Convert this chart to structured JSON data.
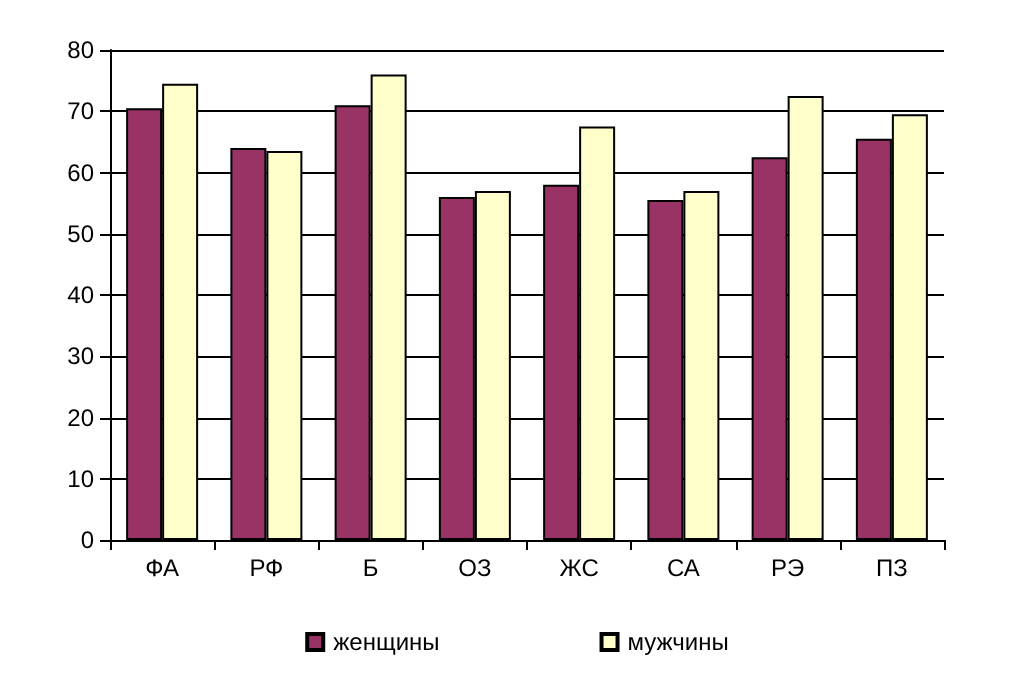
{
  "chart_data": {
    "type": "bar",
    "categories": [
      "ФА",
      "РФ",
      "Б",
      "ОЗ",
      "ЖС",
      "СА",
      "РЭ",
      "ПЗ"
    ],
    "series": [
      {
        "name": "женщины",
        "color": "#993366",
        "values": [
          70.5,
          64,
          71,
          56,
          58,
          55.5,
          62.5,
          65.5
        ]
      },
      {
        "name": "мужчины",
        "color": "#ffffcc",
        "values": [
          74.5,
          63.5,
          76,
          57,
          67.5,
          57,
          72.5,
          69.5
        ]
      }
    ],
    "ylim": [
      0,
      80
    ],
    "yticks": [
      0,
      10,
      20,
      30,
      40,
      50,
      60,
      70,
      80
    ],
    "grid": "y",
    "legend": "bottom"
  }
}
